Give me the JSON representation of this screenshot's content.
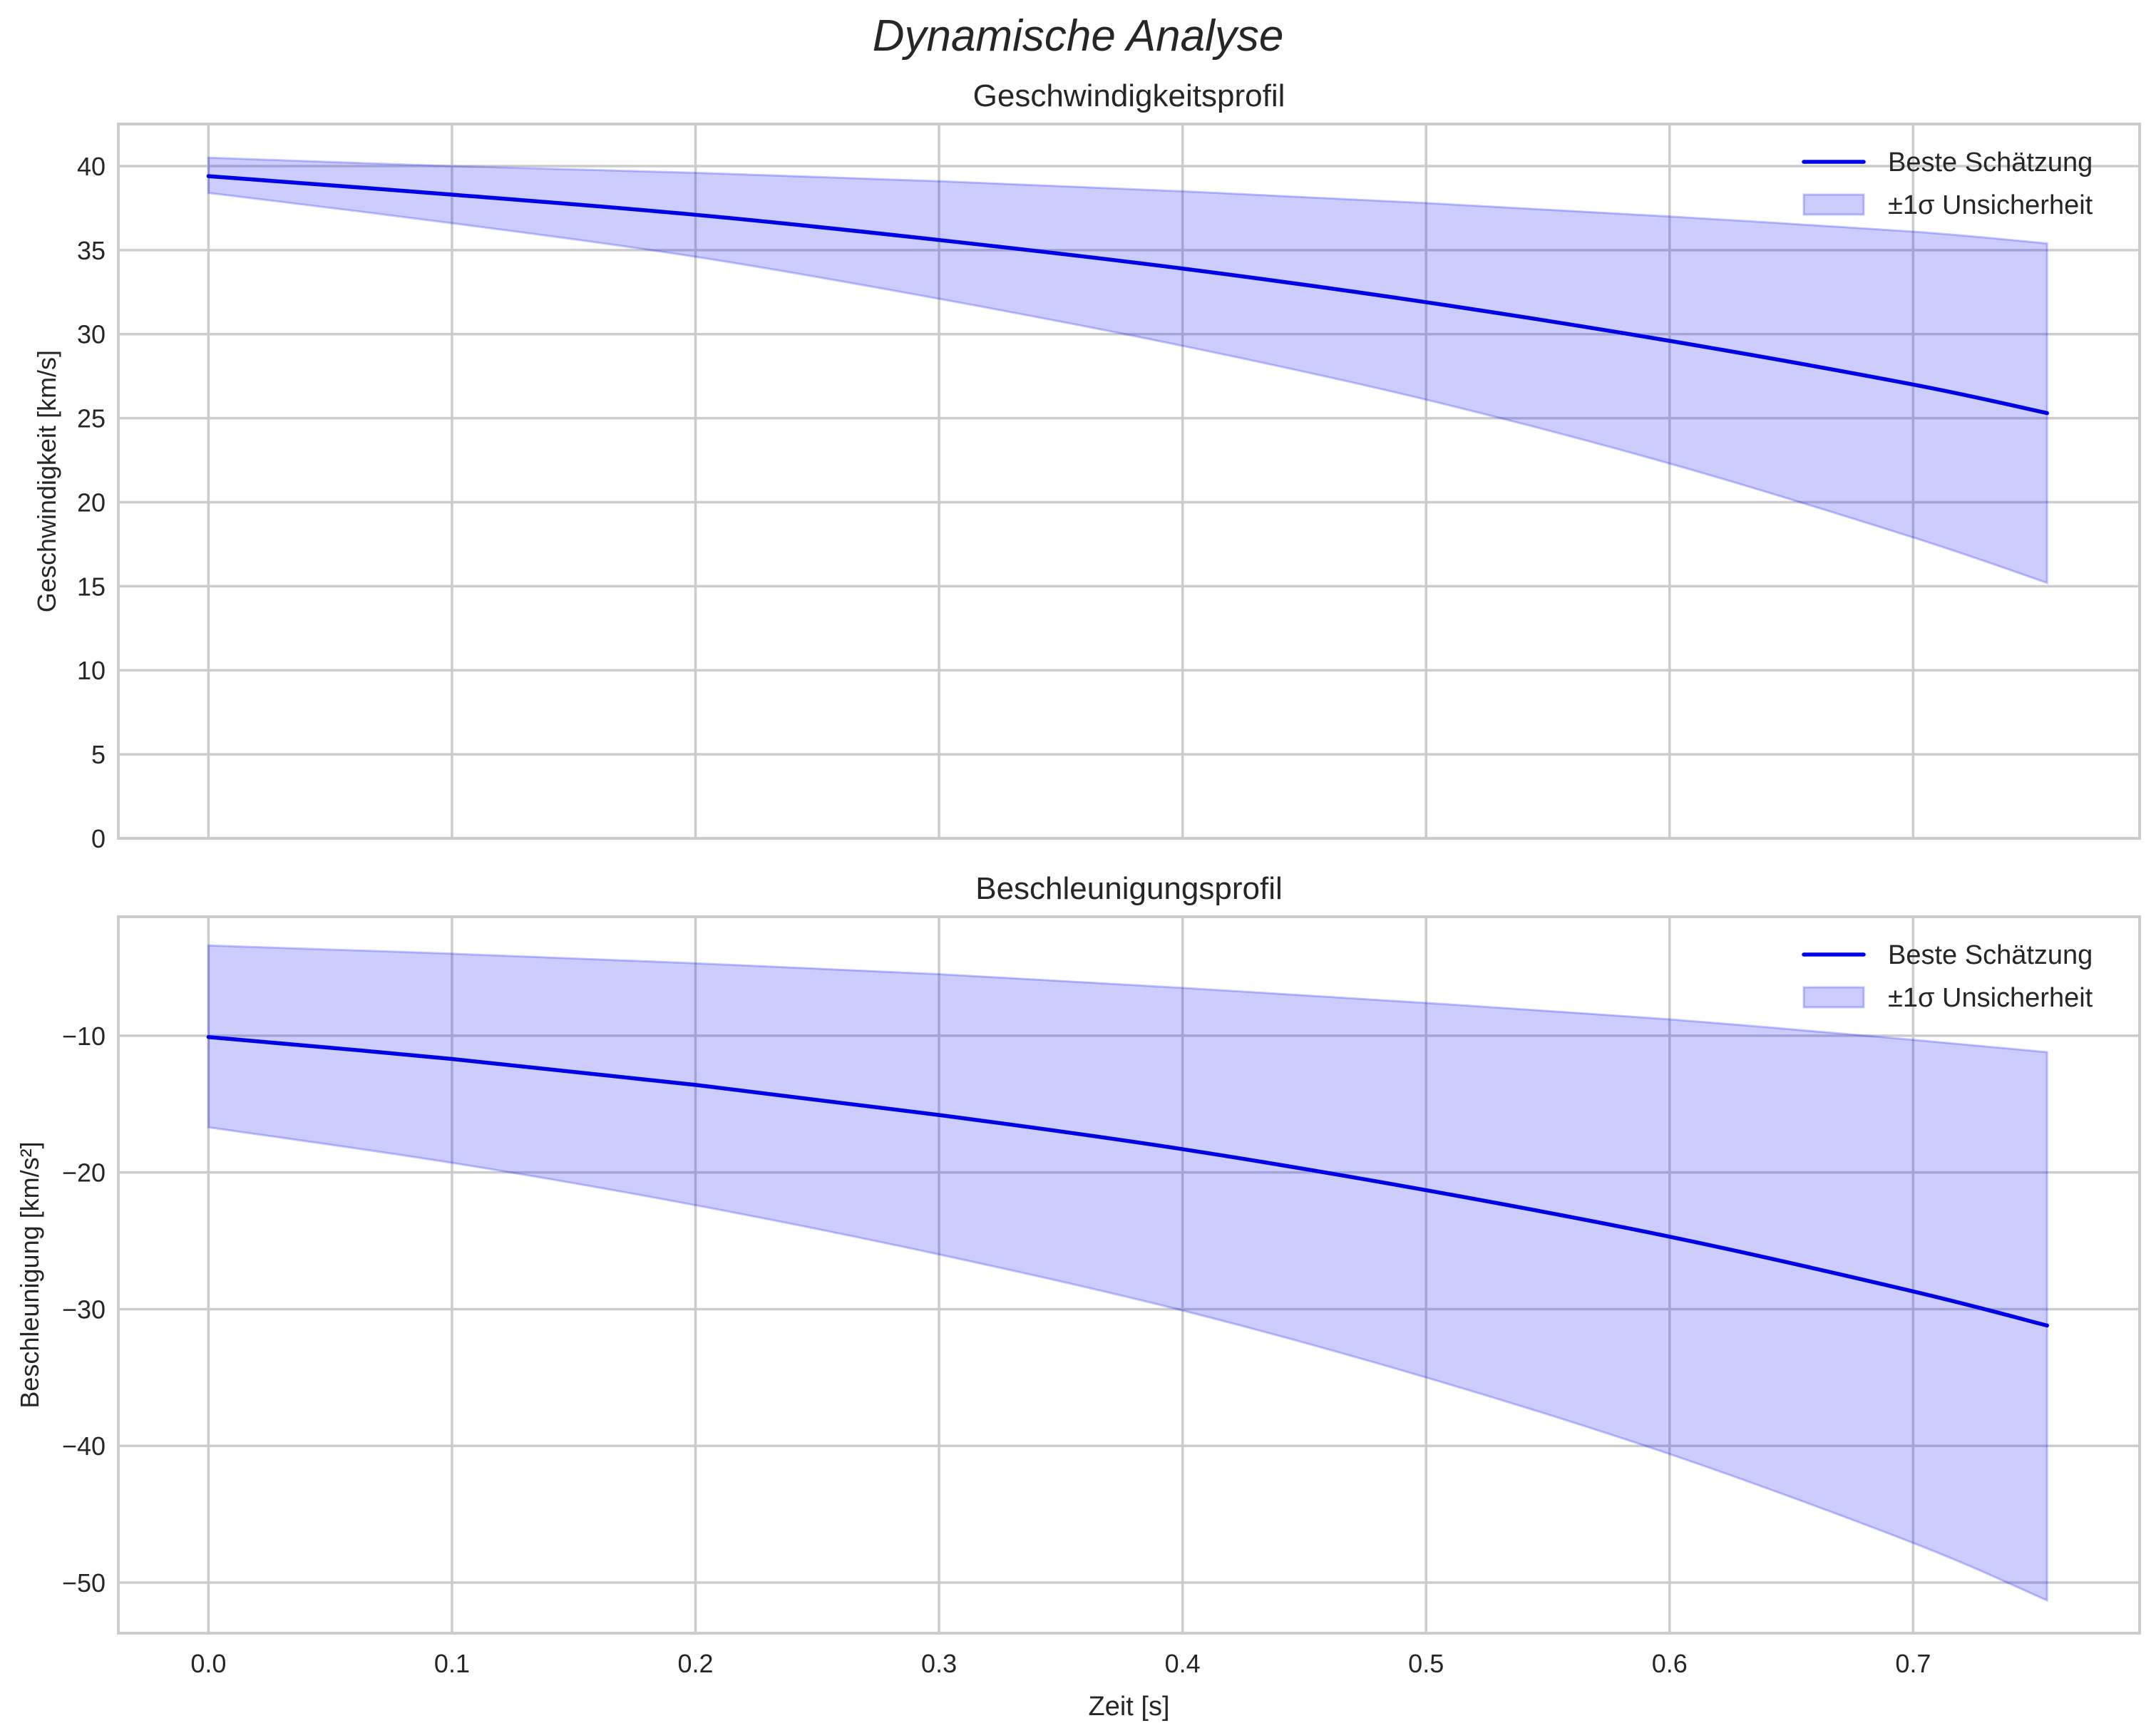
{
  "figure": {
    "title": "Dynamische Analyse",
    "background": "#ffffff",
    "grid_color": "#cccccc",
    "line_color": "#0000e6",
    "band_color": "#0000ff",
    "band_alpha": 0.2
  },
  "chart_data": [
    {
      "type": "line",
      "title": "Geschwindigkeitsprofil",
      "xlabel": "",
      "ylabel": "Geschwindigkeit [km/s]",
      "xlim": [
        -0.037,
        0.793
      ],
      "ylim": [
        0,
        42.5
      ],
      "xticks": [
        0.0,
        0.1,
        0.2,
        0.3,
        0.4,
        0.5,
        0.6,
        0.7
      ],
      "xtick_labels_visible": false,
      "yticks": [
        0,
        5,
        10,
        15,
        20,
        25,
        30,
        35,
        40
      ],
      "ytick_labels": [
        "0",
        "5",
        "10",
        "15",
        "20",
        "25",
        "30",
        "35",
        "40"
      ],
      "grid": true,
      "legend": {
        "position": "upper right",
        "entries": [
          "Beste Schätzung",
          "±1σ Unsicherheit"
        ]
      },
      "x": [
        0.0,
        0.1,
        0.2,
        0.3,
        0.4,
        0.5,
        0.6,
        0.7,
        0.755
      ],
      "series": [
        {
          "name": "Beste Schätzung",
          "kind": "line",
          "values": [
            39.4,
            38.3,
            37.1,
            35.6,
            33.9,
            31.9,
            29.6,
            27.0,
            25.3
          ]
        },
        {
          "name": "±1σ Unsicherheit",
          "kind": "band",
          "upper": [
            40.5,
            40.0,
            39.6,
            39.1,
            38.5,
            37.8,
            37.0,
            36.1,
            35.4
          ],
          "lower": [
            38.4,
            36.6,
            34.6,
            32.1,
            29.3,
            26.1,
            22.3,
            17.9,
            15.2
          ]
        }
      ]
    },
    {
      "type": "line",
      "title": "Beschleunigungsprofil",
      "xlabel": "Zeit [s]",
      "ylabel": "Beschleunigung [km/s²]",
      "xlim": [
        -0.037,
        0.793
      ],
      "ylim": [
        -53.7,
        -1.3
      ],
      "xticks": [
        0.0,
        0.1,
        0.2,
        0.3,
        0.4,
        0.5,
        0.6,
        0.7
      ],
      "xtick_labels": [
        "0.0",
        "0.1",
        "0.2",
        "0.3",
        "0.4",
        "0.5",
        "0.6",
        "0.7"
      ],
      "yticks": [
        -10,
        -20,
        -30,
        -40,
        -50
      ],
      "ytick_labels": [
        "−10",
        "−20",
        "−30",
        "−40",
        "−50"
      ],
      "grid": true,
      "legend": {
        "position": "upper right",
        "entries": [
          "Beste Schätzung",
          "±1σ Unsicherheit"
        ]
      },
      "x": [
        0.0,
        0.1,
        0.2,
        0.3,
        0.4,
        0.5,
        0.6,
        0.7,
        0.755
      ],
      "series": [
        {
          "name": "Beste Schätzung",
          "kind": "line",
          "values": [
            -10.1,
            -11.7,
            -13.6,
            -15.8,
            -18.3,
            -21.3,
            -24.7,
            -28.7,
            -31.2
          ]
        },
        {
          "name": "±1σ Unsicherheit",
          "kind": "band",
          "upper": [
            -3.4,
            -4.0,
            -4.7,
            -5.5,
            -6.5,
            -7.6,
            -8.8,
            -10.3,
            -11.2
          ],
          "lower": [
            -16.7,
            -19.3,
            -22.4,
            -26.0,
            -30.1,
            -35.0,
            -40.6,
            -47.1,
            -51.3
          ]
        }
      ]
    }
  ]
}
